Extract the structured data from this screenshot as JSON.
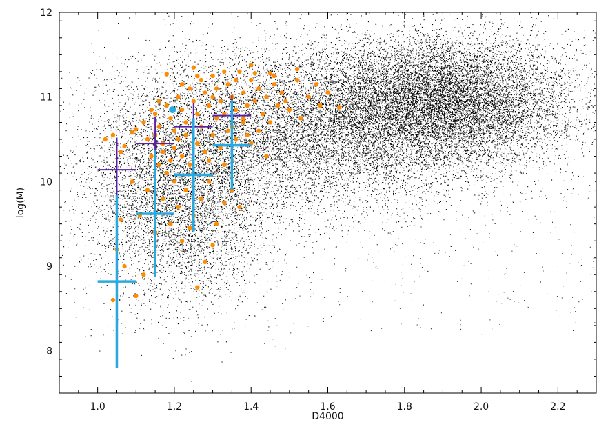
{
  "chart_data": {
    "type": "scatter",
    "title": "",
    "xlabel": "D4000",
    "ylabel": "log(M)",
    "xlim": [
      0.9,
      2.3
    ],
    "ylim": [
      7.5,
      12.0
    ],
    "xticks": [
      1.0,
      1.2,
      1.4,
      1.6,
      1.8,
      2.0,
      2.2
    ],
    "xtick_labels": [
      "1.0",
      "1.2",
      "1.4",
      "1.6",
      "1.8",
      "2.0",
      "2.2"
    ],
    "yticks": [
      8,
      9,
      10,
      11,
      12
    ],
    "ytick_labels": [
      "8",
      "9",
      "10",
      "11",
      "12"
    ],
    "grid": false,
    "legend": "none",
    "background_sample": {
      "color": "#000000",
      "description_visible": "dense black point cloud",
      "clusters": [
        {
          "x_center": 1.9,
          "y_center": 10.95,
          "x_spread": 0.17,
          "y_spread": 0.38,
          "weight": 0.45
        },
        {
          "x_center": 1.55,
          "y_center": 10.6,
          "x_spread": 0.22,
          "y_spread": 0.5,
          "weight": 0.3
        },
        {
          "x_center": 1.22,
          "y_center": 9.9,
          "x_spread": 0.12,
          "y_spread": 0.65,
          "weight": 0.25
        }
      ]
    },
    "highlight_points": {
      "color": "#ff8c00",
      "points": [
        [
          1.02,
          10.5
        ],
        [
          1.04,
          10.55
        ],
        [
          1.07,
          10.42
        ],
        [
          1.09,
          10.58
        ],
        [
          1.06,
          10.35
        ],
        [
          1.1,
          10.62
        ],
        [
          1.12,
          10.7
        ],
        [
          1.13,
          10.5
        ],
        [
          1.15,
          10.8
        ],
        [
          1.16,
          10.65
        ],
        [
          1.17,
          10.45
        ],
        [
          1.18,
          10.9
        ],
        [
          1.19,
          10.75
        ],
        [
          1.2,
          10.6
        ],
        [
          1.21,
          11.0
        ],
        [
          1.22,
          10.85
        ],
        [
          1.23,
          10.7
        ],
        [
          1.24,
          11.1
        ],
        [
          1.25,
          10.95
        ],
        [
          1.26,
          10.8
        ],
        [
          1.27,
          11.2
        ],
        [
          1.28,
          11.05
        ],
        [
          1.29,
          10.9
        ],
        [
          1.3,
          11.25
        ],
        [
          1.31,
          11.1
        ],
        [
          1.32,
          10.95
        ],
        [
          1.33,
          10.8
        ],
        [
          1.34,
          11.15
        ],
        [
          1.35,
          11.0
        ],
        [
          1.36,
          10.85
        ],
        [
          1.37,
          11.3
        ],
        [
          1.38,
          11.05
        ],
        [
          1.39,
          10.9
        ],
        [
          1.4,
          11.2
        ],
        [
          1.41,
          10.95
        ],
        [
          1.42,
          11.1
        ],
        [
          1.43,
          10.8
        ],
        [
          1.44,
          11.0
        ],
        [
          1.45,
          10.7
        ],
        [
          1.46,
          11.15
        ],
        [
          1.47,
          10.9
        ],
        [
          1.48,
          11.05
        ],
        [
          1.5,
          10.85
        ],
        [
          1.52,
          11.2
        ],
        [
          1.55,
          11.0
        ],
        [
          1.58,
          10.9
        ],
        [
          1.6,
          11.05
        ],
        [
          1.63,
          10.88
        ],
        [
          1.14,
          10.3
        ],
        [
          1.16,
          10.2
        ],
        [
          1.18,
          10.1
        ],
        [
          1.2,
          10.0
        ],
        [
          1.22,
          10.3
        ],
        [
          1.24,
          10.2
        ],
        [
          1.26,
          10.45
        ],
        [
          1.28,
          10.35
        ],
        [
          1.3,
          10.55
        ],
        [
          1.32,
          10.4
        ],
        [
          1.34,
          10.6
        ],
        [
          1.36,
          10.5
        ],
        [
          1.38,
          10.7
        ],
        [
          1.4,
          10.45
        ],
        [
          1.42,
          10.6
        ],
        [
          1.44,
          10.3
        ],
        [
          1.21,
          9.7
        ],
        [
          1.23,
          9.9
        ],
        [
          1.25,
          9.6
        ],
        [
          1.27,
          9.8
        ],
        [
          1.29,
          10.0
        ],
        [
          1.31,
          9.5
        ],
        [
          1.33,
          9.75
        ],
        [
          1.35,
          9.9
        ],
        [
          1.19,
          9.5
        ],
        [
          1.17,
          9.8
        ],
        [
          1.15,
          9.4
        ],
        [
          1.13,
          9.9
        ],
        [
          1.11,
          9.6
        ],
        [
          1.09,
          10.0
        ],
        [
          1.05,
          9.2
        ],
        [
          1.07,
          9.0
        ],
        [
          1.04,
          8.6
        ],
        [
          1.1,
          8.65
        ],
        [
          1.12,
          8.9
        ],
        [
          1.06,
          9.55
        ],
        [
          1.22,
          9.3
        ],
        [
          1.24,
          9.45
        ],
        [
          1.26,
          8.75
        ],
        [
          1.28,
          9.05
        ],
        [
          1.3,
          9.25
        ],
        [
          1.37,
          9.7
        ],
        [
          1.18,
          11.27
        ],
        [
          1.25,
          11.35
        ],
        [
          1.33,
          11.3
        ],
        [
          1.4,
          11.38
        ],
        [
          1.46,
          11.25
        ],
        [
          1.52,
          11.33
        ],
        [
          1.2,
          10.4
        ],
        [
          1.23,
          10.55
        ],
        [
          1.27,
          10.65
        ],
        [
          1.31,
          10.75
        ],
        [
          1.35,
          10.65
        ],
        [
          1.39,
          10.55
        ],
        [
          1.15,
          10.55
        ],
        [
          1.17,
          10.35
        ],
        [
          1.19,
          10.25
        ],
        [
          1.21,
          10.5
        ],
        [
          1.29,
          10.25
        ],
        [
          1.33,
          10.2
        ],
        [
          1.16,
          10.95
        ],
        [
          1.14,
          10.85
        ],
        [
          1.22,
          11.15
        ],
        [
          1.26,
          11.25
        ],
        [
          1.3,
          11.0
        ],
        [
          1.38,
          10.75
        ],
        [
          1.45,
          11.28
        ],
        [
          1.49,
          10.95
        ],
        [
          1.53,
          10.75
        ],
        [
          1.57,
          11.15
        ],
        [
          1.41,
          11.28
        ],
        [
          1.36,
          11.2
        ]
      ]
    },
    "marker_point": {
      "x": 1.195,
      "y": 10.85,
      "color": "#29a9e0"
    },
    "error_bars": [
      {
        "series": "purple",
        "color": "#5a1fa8",
        "x": 1.05,
        "y": 10.14,
        "xerr": 0.05,
        "yerr": 0.38
      },
      {
        "series": "purple",
        "color": "#5a1fa8",
        "x": 1.15,
        "y": 10.45,
        "xerr": 0.05,
        "yerr": 0.32
      },
      {
        "series": "purple",
        "color": "#5a1fa8",
        "x": 1.25,
        "y": 10.65,
        "xerr": 0.05,
        "yerr": 0.28
      },
      {
        "series": "purple",
        "color": "#5a1fa8",
        "x": 1.35,
        "y": 10.78,
        "xerr": 0.05,
        "yerr": 0.24
      },
      {
        "series": "cyan",
        "color": "#29a9e0",
        "x": 1.05,
        "y": 8.82,
        "xerr": 0.05,
        "yerr": 1.02
      },
      {
        "series": "cyan",
        "color": "#29a9e0",
        "x": 1.15,
        "y": 9.62,
        "xerr": 0.05,
        "yerr": 0.75
      },
      {
        "series": "cyan",
        "color": "#29a9e0",
        "x": 1.25,
        "y": 10.08,
        "xerr": 0.05,
        "yerr": 0.67
      },
      {
        "series": "cyan",
        "color": "#29a9e0",
        "x": 1.35,
        "y": 10.43,
        "xerr": 0.05,
        "yerr": 0.53
      }
    ]
  }
}
